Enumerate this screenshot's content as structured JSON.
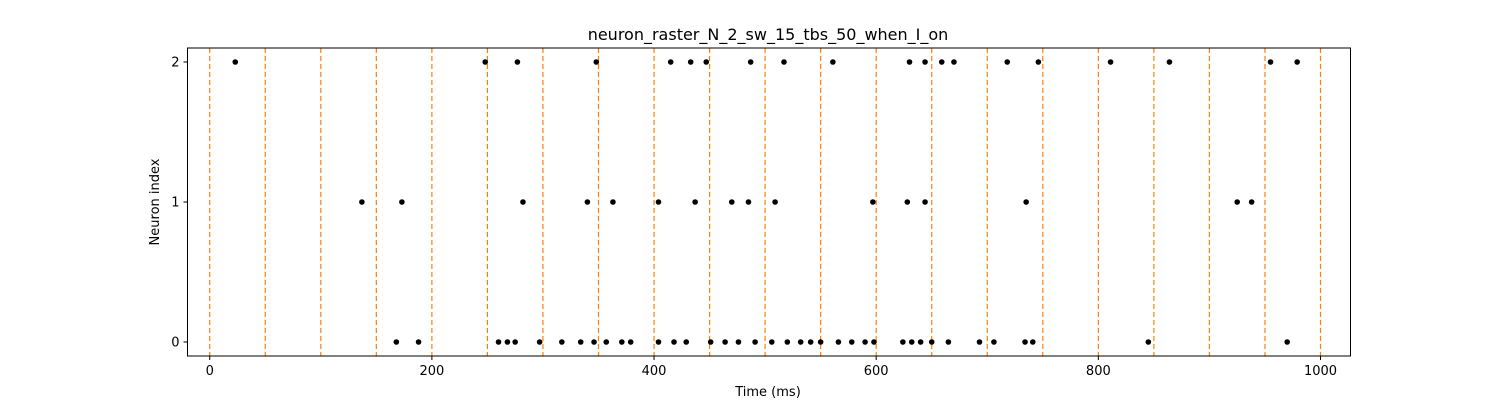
{
  "chart_data": {
    "type": "scatter",
    "title": "neuron_raster_N_2_sw_15_tbs_50_when_I_on",
    "xlabel": "Time (ms)",
    "ylabel": "Neuron index",
    "xlim": [
      -20,
      1027
    ],
    "ylim": [
      -0.1,
      2.1
    ],
    "xticks": [
      0,
      200,
      400,
      600,
      800,
      1000
    ],
    "yticks": [
      0,
      1,
      2
    ],
    "grid": false,
    "legend": "none",
    "colors": {
      "spikes": "#000000",
      "vlines": "#ff7f0e",
      "axes": "#000000"
    },
    "vlines": {
      "style": "dashed",
      "x": [
        0,
        50,
        100,
        150,
        200,
        250,
        300,
        350,
        400,
        450,
        500,
        550,
        600,
        650,
        700,
        750,
        800,
        850,
        900,
        950,
        1000
      ]
    },
    "series": [
      {
        "neuron": 2,
        "x": [
          23,
          248,
          277,
          348,
          415,
          433,
          447,
          487,
          517,
          561,
          630,
          644,
          659,
          670,
          718,
          746,
          811,
          864,
          955,
          979
        ]
      },
      {
        "neuron": 1,
        "x": [
          137,
          173,
          282,
          340,
          363,
          404,
          437,
          470,
          485,
          509,
          597,
          628,
          644,
          735,
          925,
          938
        ]
      },
      {
        "neuron": 0,
        "x": [
          168,
          188,
          260,
          268,
          275,
          297,
          317,
          334,
          346,
          357,
          371,
          379,
          404,
          418,
          429,
          451,
          464,
          476,
          491,
          506,
          520,
          532,
          541,
          550,
          566,
          578,
          590,
          598,
          624,
          632,
          640,
          650,
          665,
          693,
          706,
          734,
          741,
          845,
          970
        ]
      }
    ]
  }
}
